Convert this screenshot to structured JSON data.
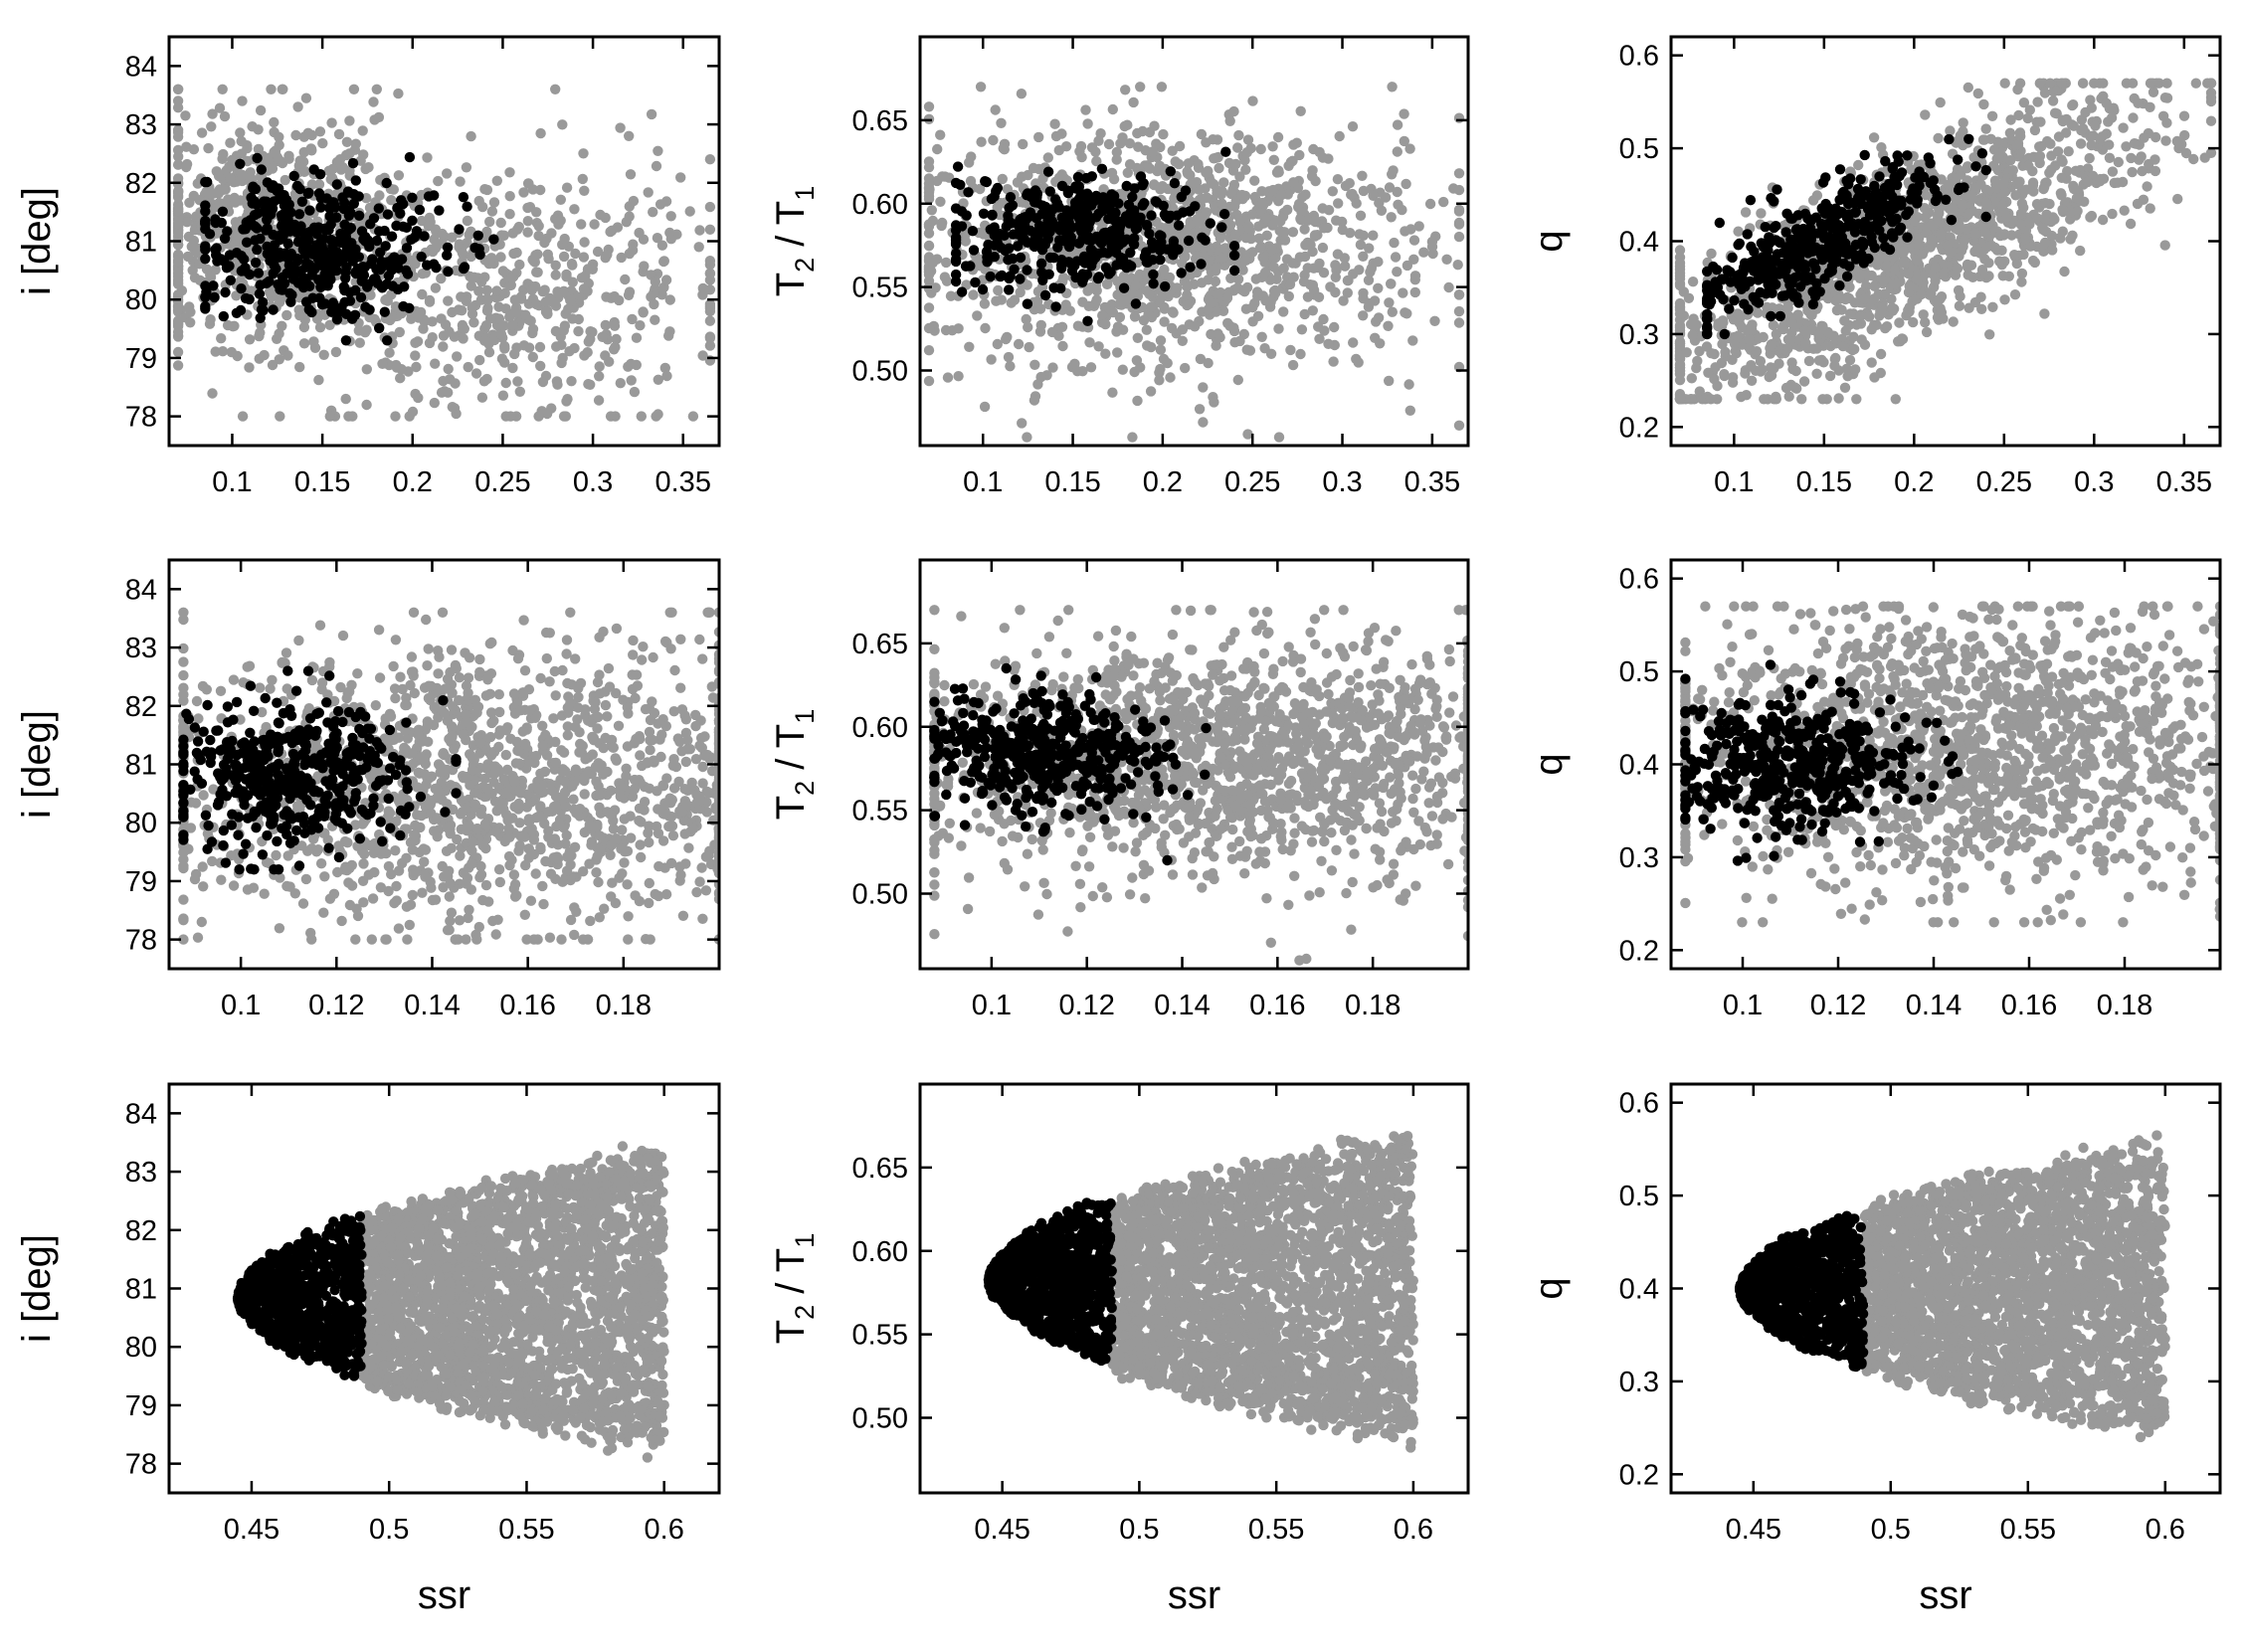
{
  "figure": {
    "description_rows": [
      "top",
      "middle",
      "bottom"
    ],
    "colors": {
      "background_cloud": "#999999",
      "best_fit": "#000000",
      "frame": "#000000"
    }
  },
  "chart_data": [
    {
      "type": "scatter",
      "panel": "row1-col1",
      "xlabel": "",
      "ylabel": "i  [deg]",
      "xlim": [
        0.065,
        0.37
      ],
      "ylim": [
        77.5,
        84.5
      ],
      "xticks": [
        0.1,
        0.15,
        0.2,
        0.25,
        0.3,
        0.35
      ],
      "xtick_labels": [
        "0.1",
        "0.15",
        "0.2",
        "0.25",
        "0.3",
        "0.35"
      ],
      "yticks": [
        78,
        79,
        80,
        81,
        82,
        83,
        84
      ],
      "ytick_labels": [
        "78",
        "79",
        "80",
        "81",
        "82",
        "83",
        "84"
      ],
      "series": [
        {
          "role": "all",
          "color": "#999999",
          "n": 1300,
          "clusters": [
            {
              "weight": 0.55,
              "x_center": 0.12,
              "x_spread": 0.04,
              "y_center": 81.2,
              "y_spread": 1.0
            },
            {
              "weight": 0.45,
              "x_center": 0.25,
              "x_spread": 0.06,
              "y_center": 80.1,
              "y_spread": 1.1
            }
          ],
          "x_range": [
            0.07,
            0.365
          ],
          "y_range": [
            78.0,
            83.6
          ]
        },
        {
          "role": "best",
          "color": "#000000",
          "n": 420,
          "clusters": [
            {
              "weight": 1,
              "x_center": 0.145,
              "x_spread": 0.035,
              "y_center": 80.9,
              "y_spread": 0.6
            }
          ],
          "x_range": [
            0.085,
            0.245
          ],
          "y_range": [
            79.3,
            82.6
          ]
        }
      ]
    },
    {
      "type": "scatter",
      "panel": "row1-col2",
      "xlabel": "",
      "ylabel": "T2 / T1",
      "ylabel_parts": [
        "T",
        "2",
        " / T",
        "1"
      ],
      "xlim": [
        0.065,
        0.37
      ],
      "ylim": [
        0.455,
        0.7
      ],
      "xticks": [
        0.1,
        0.15,
        0.2,
        0.25,
        0.3,
        0.35
      ],
      "xtick_labels": [
        "0.1",
        "0.15",
        "0.2",
        "0.25",
        "0.3",
        "0.35"
      ],
      "yticks": [
        0.5,
        0.55,
        0.6,
        0.65
      ],
      "ytick_labels": [
        "0.50",
        "0.55",
        "0.60",
        "0.65"
      ],
      "series": [
        {
          "role": "all",
          "color": "#999999",
          "n": 1300,
          "clusters": [
            {
              "weight": 1,
              "x_center": 0.2,
              "x_spread": 0.07,
              "y_center": 0.575,
              "y_spread": 0.035
            }
          ],
          "x_range": [
            0.07,
            0.365
          ],
          "y_range": [
            0.46,
            0.67
          ]
        },
        {
          "role": "best",
          "color": "#000000",
          "n": 380,
          "clusters": [
            {
              "weight": 1,
              "x_center": 0.15,
              "x_spread": 0.035,
              "y_center": 0.585,
              "y_spread": 0.018
            }
          ],
          "x_range": [
            0.085,
            0.24
          ],
          "y_range": [
            0.525,
            0.635
          ]
        }
      ]
    },
    {
      "type": "scatter",
      "panel": "row1-col3",
      "xlabel": "",
      "ylabel": "q",
      "xlim": [
        0.065,
        0.37
      ],
      "ylim": [
        0.18,
        0.62
      ],
      "xticks": [
        0.1,
        0.15,
        0.2,
        0.25,
        0.3,
        0.35
      ],
      "xtick_labels": [
        "0.1",
        "0.15",
        "0.2",
        "0.25",
        "0.3",
        "0.35"
      ],
      "yticks": [
        0.2,
        0.3,
        0.4,
        0.5,
        0.6
      ],
      "ytick_labels": [
        "0.2",
        "0.3",
        "0.4",
        "0.5",
        "0.6"
      ],
      "series": [
        {
          "role": "all",
          "color": "#999999",
          "n": 1500,
          "trend": {
            "x0": 0.075,
            "y0": 0.28,
            "slope": 0.95
          },
          "clusters": [
            {
              "weight": 1,
              "x_center": 0.2,
              "x_spread": 0.07,
              "y_center": 0,
              "y_spread": 0.05
            }
          ],
          "x_range": [
            0.07,
            0.365
          ],
          "y_range": [
            0.23,
            0.57
          ]
        },
        {
          "role": "best",
          "color": "#000000",
          "n": 450,
          "trend": {
            "x0": 0.085,
            "y0": 0.335,
            "slope": 1.05
          },
          "clusters": [
            {
              "weight": 1,
              "x_center": 0.15,
              "x_spread": 0.035,
              "y_center": 0,
              "y_spread": 0.025
            }
          ],
          "x_range": [
            0.085,
            0.24
          ],
          "y_range": [
            0.3,
            0.51
          ]
        }
      ]
    },
    {
      "type": "scatter",
      "panel": "row2-col1",
      "xlabel": "",
      "ylabel": "i  [deg]",
      "xlim": [
        0.085,
        0.2
      ],
      "ylim": [
        77.5,
        84.5
      ],
      "xticks": [
        0.1,
        0.12,
        0.14,
        0.16,
        0.18
      ],
      "xtick_labels": [
        "0.1",
        "0.12",
        "0.14",
        "0.16",
        "0.18"
      ],
      "yticks": [
        78,
        79,
        80,
        81,
        82,
        83,
        84
      ],
      "ytick_labels": [
        "78",
        "79",
        "80",
        "81",
        "82",
        "83",
        "84"
      ],
      "series": [
        {
          "role": "all",
          "color": "#999999",
          "n": 1600,
          "clusters": [
            {
              "weight": 1,
              "x_center": 0.15,
              "x_spread": 0.035,
              "y_center": 80.7,
              "y_spread": 1.2
            }
          ],
          "x_range": [
            0.088,
            0.2
          ],
          "y_range": [
            78.0,
            83.6
          ]
        },
        {
          "role": "best",
          "color": "#000000",
          "n": 450,
          "clusters": [
            {
              "weight": 1,
              "x_center": 0.11,
              "x_spread": 0.013,
              "y_center": 80.8,
              "y_spread": 0.65
            }
          ],
          "x_range": [
            0.088,
            0.145
          ],
          "y_range": [
            79.2,
            82.6
          ]
        }
      ]
    },
    {
      "type": "scatter",
      "panel": "row2-col2",
      "xlabel": "",
      "ylabel": "T2 / T1",
      "ylabel_parts": [
        "T",
        "2",
        " / T",
        "1"
      ],
      "xlim": [
        0.085,
        0.2
      ],
      "ylim": [
        0.455,
        0.7
      ],
      "xticks": [
        0.1,
        0.12,
        0.14,
        0.16,
        0.18
      ],
      "xtick_labels": [
        "0.1",
        "0.12",
        "0.14",
        "0.16",
        "0.18"
      ],
      "yticks": [
        0.5,
        0.55,
        0.6,
        0.65
      ],
      "ytick_labels": [
        "0.50",
        "0.55",
        "0.60",
        "0.65"
      ],
      "series": [
        {
          "role": "all",
          "color": "#999999",
          "n": 1600,
          "clusters": [
            {
              "weight": 1,
              "x_center": 0.15,
              "x_spread": 0.035,
              "y_center": 0.58,
              "y_spread": 0.035
            }
          ],
          "x_range": [
            0.088,
            0.2
          ],
          "y_range": [
            0.46,
            0.67
          ]
        },
        {
          "role": "best",
          "color": "#000000",
          "n": 420,
          "clusters": [
            {
              "weight": 1,
              "x_center": 0.11,
              "x_spread": 0.013,
              "y_center": 0.585,
              "y_spread": 0.018
            }
          ],
          "x_range": [
            0.088,
            0.145
          ],
          "y_range": [
            0.52,
            0.635
          ]
        }
      ]
    },
    {
      "type": "scatter",
      "panel": "row2-col3",
      "xlabel": "",
      "ylabel": "q",
      "xlim": [
        0.085,
        0.2
      ],
      "ylim": [
        0.18,
        0.62
      ],
      "xticks": [
        0.1,
        0.12,
        0.14,
        0.16,
        0.18
      ],
      "xtick_labels": [
        "0.1",
        "0.12",
        "0.14",
        "0.16",
        "0.18"
      ],
      "yticks": [
        0.2,
        0.3,
        0.4,
        0.5,
        0.6
      ],
      "ytick_labels": [
        "0.2",
        "0.3",
        "0.4",
        "0.5",
        "0.6"
      ],
      "series": [
        {
          "role": "all",
          "color": "#999999",
          "n": 1600,
          "clusters": [
            {
              "weight": 1,
              "x_center": 0.15,
              "x_spread": 0.035,
              "y_center": 0.42,
              "y_spread": 0.075
            }
          ],
          "x_range": [
            0.088,
            0.2
          ],
          "y_range": [
            0.23,
            0.57
          ]
        },
        {
          "role": "best",
          "color": "#000000",
          "n": 450,
          "clusters": [
            {
              "weight": 1,
              "x_center": 0.11,
              "x_spread": 0.013,
              "y_center": 0.4,
              "y_spread": 0.035
            }
          ],
          "x_range": [
            0.088,
            0.145
          ],
          "y_range": [
            0.29,
            0.51
          ]
        }
      ]
    },
    {
      "type": "scatter",
      "panel": "row3-col1",
      "xlabel": "ssr",
      "ylabel": "i  [deg]",
      "xlim": [
        0.42,
        0.62
      ],
      "ylim": [
        77.5,
        84.5
      ],
      "xticks": [
        0.45,
        0.5,
        0.55,
        0.6
      ],
      "xtick_labels": [
        "0.45",
        "0.5",
        "0.55",
        "0.6"
      ],
      "yticks": [
        78,
        79,
        80,
        81,
        82,
        83,
        84
      ],
      "ytick_labels": [
        "78",
        "79",
        "80",
        "81",
        "82",
        "83",
        "84"
      ],
      "series": [
        {
          "role": "all",
          "color": "#999999",
          "n": 2600,
          "cut_min": 0.49,
          "parabola": {
            "x_vertex": 0.445,
            "center": 80.8,
            "half_width_at_max": 2.8,
            "x_max": 0.6
          },
          "x_range": [
            0.49,
            0.6
          ],
          "y_range": [
            78.0,
            83.6
          ]
        },
        {
          "role": "best",
          "color": "#000000",
          "n": 900,
          "parabola": {
            "x_vertex": 0.445,
            "center": 80.85,
            "half_width_at_max": 2.8,
            "x_max": 0.6
          },
          "x_range": [
            0.445,
            0.49
          ],
          "y_range": [
            79.2,
            82.6
          ]
        }
      ]
    },
    {
      "type": "scatter",
      "panel": "row3-col2",
      "xlabel": "ssr",
      "ylabel": "T2 / T1",
      "ylabel_parts": [
        "T",
        "2",
        " / T",
        "1"
      ],
      "xlim": [
        0.42,
        0.62
      ],
      "ylim": [
        0.455,
        0.7
      ],
      "xticks": [
        0.45,
        0.5,
        0.55,
        0.6
      ],
      "xtick_labels": [
        "0.45",
        "0.5",
        "0.55",
        "0.6"
      ],
      "yticks": [
        0.5,
        0.55,
        0.6,
        0.65
      ],
      "ytick_labels": [
        "0.50",
        "0.55",
        "0.60",
        "0.65"
      ],
      "series": [
        {
          "role": "all",
          "color": "#999999",
          "n": 2600,
          "cut_min": 0.49,
          "parabola": {
            "x_vertex": 0.445,
            "center": 0.578,
            "half_width_at_max": 0.1,
            "x_max": 0.6
          },
          "x_range": [
            0.49,
            0.6
          ],
          "y_range": [
            0.46,
            0.67
          ]
        },
        {
          "role": "best",
          "color": "#000000",
          "n": 900,
          "parabola": {
            "x_vertex": 0.445,
            "center": 0.582,
            "half_width_at_max": 0.1,
            "x_max": 0.6
          },
          "x_range": [
            0.445,
            0.49
          ],
          "y_range": [
            0.52,
            0.635
          ]
        }
      ]
    },
    {
      "type": "scatter",
      "panel": "row3-col3",
      "xlabel": "ssr",
      "ylabel": "q",
      "xlim": [
        0.42,
        0.62
      ],
      "ylim": [
        0.18,
        0.62
      ],
      "xticks": [
        0.45,
        0.5,
        0.55,
        0.6
      ],
      "xtick_labels": [
        "0.45",
        "0.5",
        "0.55",
        "0.6"
      ],
      "yticks": [
        0.2,
        0.3,
        0.4,
        0.5,
        0.6
      ],
      "ytick_labels": [
        "0.2",
        "0.3",
        "0.4",
        "0.5",
        "0.6"
      ],
      "series": [
        {
          "role": "all",
          "color": "#999999",
          "n": 2600,
          "cut_min": 0.49,
          "parabola": {
            "x_vertex": 0.445,
            "center": 0.4,
            "half_width_at_max": 0.17,
            "x_max": 0.6
          },
          "x_range": [
            0.49,
            0.6
          ],
          "y_range": [
            0.23,
            0.57
          ]
        },
        {
          "role": "best",
          "color": "#000000",
          "n": 900,
          "parabola": {
            "x_vertex": 0.445,
            "center": 0.4,
            "half_width_at_max": 0.17,
            "x_max": 0.6
          },
          "x_range": [
            0.445,
            0.49
          ],
          "y_range": [
            0.29,
            0.51
          ]
        }
      ]
    }
  ]
}
